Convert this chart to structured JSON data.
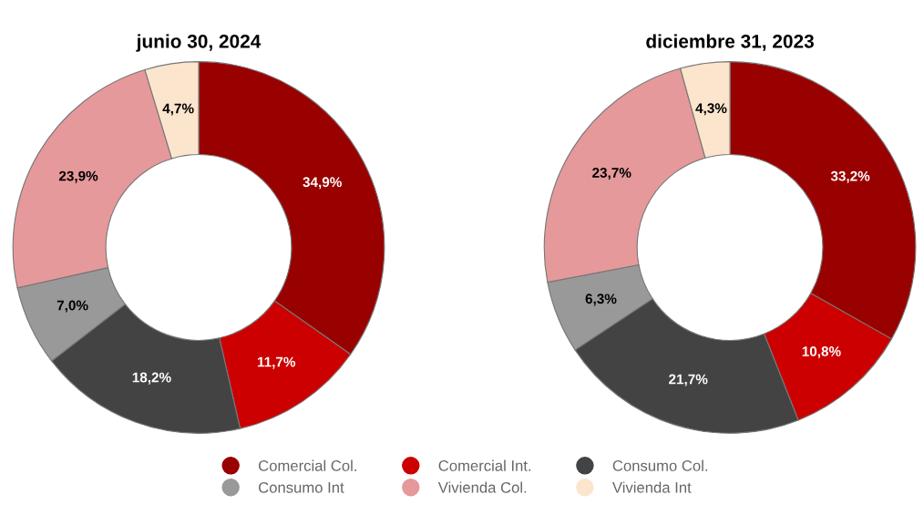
{
  "chart_data": [
    {
      "type": "donut",
      "title": "junio 30, 2024",
      "categories": [
        "Comercial Col.",
        "Comercial Int.",
        "Consumo Col.",
        "Consumo Int",
        "Vivienda Col.",
        "Vivienda Int"
      ],
      "values": [
        34.9,
        11.7,
        18.2,
        7.0,
        23.9,
        4.7
      ],
      "value_labels": [
        "34,9%",
        "11,7%",
        "18,2%",
        "7,0%",
        "23,9%",
        "4,7%"
      ],
      "colors": [
        "#990000",
        "#cc0000",
        "#434343",
        "#999999",
        "#e6999a",
        "#fce5cd"
      ],
      "legend": "bottom"
    },
    {
      "type": "donut",
      "title": "diciembre 31, 2023",
      "categories": [
        null,
        null,
        null,
        null,
        null,
        null
      ],
      "values": [
        33.2,
        10.8,
        21.7,
        6.3,
        23.7,
        4.3
      ],
      "value_labels": [
        "33,2%",
        "10,8%",
        "21,7%",
        "6,3%",
        "23,7%",
        "4,3%"
      ],
      "colors": [
        "#990000",
        "#cc0000",
        "#434343",
        "#999999",
        "#e6999a",
        "#fce5cd"
      ]
    }
  ]
}
